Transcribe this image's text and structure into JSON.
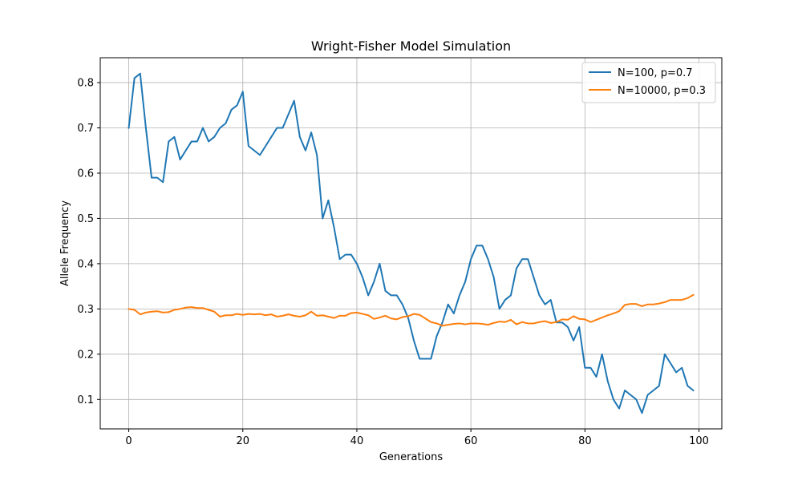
{
  "chart_data": {
    "type": "line",
    "title": "Wright-Fisher Model Simulation",
    "xlabel": "Generations",
    "ylabel": "Allele Frequency",
    "xlim": [
      -5,
      104
    ],
    "ylim": [
      0.035,
      0.855
    ],
    "xticks": [
      0,
      20,
      40,
      60,
      80,
      100
    ],
    "yticks": [
      0.1,
      0.2,
      0.3,
      0.4,
      0.5,
      0.6,
      0.7,
      0.8
    ],
    "grid": true,
    "legend_position": "top-right",
    "series": [
      {
        "name": "N=100, p=0.7",
        "color": "#1f77b4",
        "x": [
          0,
          1,
          2,
          3,
          4,
          5,
          6,
          7,
          8,
          9,
          10,
          11,
          12,
          13,
          14,
          15,
          16,
          17,
          18,
          19,
          20,
          21,
          22,
          23,
          24,
          25,
          26,
          27,
          28,
          29,
          30,
          31,
          32,
          33,
          34,
          35,
          36,
          37,
          38,
          39,
          40,
          41,
          42,
          43,
          44,
          45,
          46,
          47,
          48,
          49,
          50,
          51,
          52,
          53,
          54,
          55,
          56,
          57,
          58,
          59,
          60,
          61,
          62,
          63,
          64,
          65,
          66,
          67,
          68,
          69,
          70,
          71,
          72,
          73,
          74,
          75,
          76,
          77,
          78,
          79,
          80,
          81,
          82,
          83,
          84,
          85,
          86,
          87,
          88,
          89,
          90,
          91,
          92,
          93,
          94,
          95,
          96,
          97,
          98,
          99
        ],
        "values": [
          0.7,
          0.81,
          0.82,
          0.7,
          0.59,
          0.59,
          0.58,
          0.67,
          0.68,
          0.63,
          0.65,
          0.67,
          0.67,
          0.7,
          0.67,
          0.68,
          0.7,
          0.71,
          0.74,
          0.75,
          0.78,
          0.66,
          0.65,
          0.64,
          0.66,
          0.68,
          0.7,
          0.7,
          0.73,
          0.76,
          0.68,
          0.65,
          0.69,
          0.64,
          0.5,
          0.54,
          0.48,
          0.41,
          0.42,
          0.42,
          0.4,
          0.37,
          0.33,
          0.36,
          0.4,
          0.34,
          0.33,
          0.33,
          0.31,
          0.28,
          0.23,
          0.19,
          0.19,
          0.19,
          0.24,
          0.27,
          0.31,
          0.29,
          0.33,
          0.36,
          0.41,
          0.44,
          0.44,
          0.41,
          0.37,
          0.3,
          0.32,
          0.33,
          0.39,
          0.41,
          0.41,
          0.37,
          0.33,
          0.31,
          0.32,
          0.27,
          0.27,
          0.26,
          0.23,
          0.26,
          0.17,
          0.17,
          0.15,
          0.2,
          0.14,
          0.1,
          0.08,
          0.12,
          0.11,
          0.1,
          0.07,
          0.11,
          0.12,
          0.13,
          0.2,
          0.18,
          0.16,
          0.17,
          0.13,
          0.12
        ]
      },
      {
        "name": "N=10000, p=0.3",
        "color": "#ff7f0e",
        "x": [
          0,
          1,
          2,
          3,
          4,
          5,
          6,
          7,
          8,
          9,
          10,
          11,
          12,
          13,
          14,
          15,
          16,
          17,
          18,
          19,
          20,
          21,
          22,
          23,
          24,
          25,
          26,
          27,
          28,
          29,
          30,
          31,
          32,
          33,
          34,
          35,
          36,
          37,
          38,
          39,
          40,
          41,
          42,
          43,
          44,
          45,
          46,
          47,
          48,
          49,
          50,
          51,
          52,
          53,
          54,
          55,
          56,
          57,
          58,
          59,
          60,
          61,
          62,
          63,
          64,
          65,
          66,
          67,
          68,
          69,
          70,
          71,
          72,
          73,
          74,
          75,
          76,
          77,
          78,
          79,
          80,
          81,
          82,
          83,
          84,
          85,
          86,
          87,
          88,
          89,
          90,
          91,
          92,
          93,
          94,
          95,
          96,
          97,
          98,
          99
        ],
        "values": [
          0.3,
          0.298,
          0.288,
          0.292,
          0.294,
          0.295,
          0.292,
          0.293,
          0.298,
          0.3,
          0.303,
          0.304,
          0.302,
          0.302,
          0.298,
          0.294,
          0.283,
          0.286,
          0.286,
          0.289,
          0.287,
          0.289,
          0.288,
          0.289,
          0.286,
          0.288,
          0.283,
          0.285,
          0.288,
          0.285,
          0.283,
          0.286,
          0.294,
          0.285,
          0.286,
          0.283,
          0.28,
          0.285,
          0.285,
          0.291,
          0.292,
          0.289,
          0.286,
          0.278,
          0.281,
          0.285,
          0.279,
          0.277,
          0.282,
          0.284,
          0.289,
          0.287,
          0.279,
          0.271,
          0.268,
          0.263,
          0.265,
          0.267,
          0.268,
          0.266,
          0.268,
          0.268,
          0.267,
          0.265,
          0.269,
          0.272,
          0.271,
          0.276,
          0.266,
          0.271,
          0.268,
          0.268,
          0.271,
          0.273,
          0.269,
          0.271,
          0.277,
          0.276,
          0.284,
          0.278,
          0.277,
          0.271,
          0.276,
          0.281,
          0.286,
          0.29,
          0.295,
          0.309,
          0.311,
          0.311,
          0.306,
          0.31,
          0.31,
          0.312,
          0.315,
          0.32,
          0.32,
          0.32,
          0.324,
          0.331
        ]
      }
    ]
  }
}
